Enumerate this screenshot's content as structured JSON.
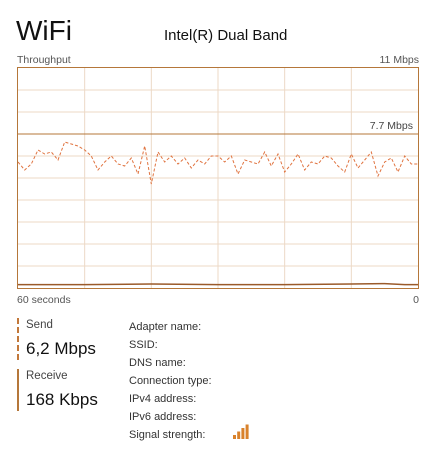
{
  "header": {
    "title": "WiFi",
    "adapter_model": "Intel(R) Dual Band"
  },
  "graph": {
    "throughput_label": "Throughput",
    "max_label": "11 Mbps",
    "scale_label": "7.7 Mbps",
    "time_span_label": "60 seconds",
    "time_end_label": "0"
  },
  "chart_data": {
    "type": "line",
    "x_unit": "seconds ago",
    "xlim": [
      60,
      0
    ],
    "ylim": [
      0,
      11
    ],
    "y_unit": "Mbps",
    "scale_marker": 7.7,
    "grid": true,
    "colors": {
      "border": "#b5773a",
      "grid": "#ecd9c6",
      "send": "#e0733f",
      "receive": "#9a5a2a"
    },
    "series": [
      {
        "name": "Send",
        "style": "dashed",
        "x": [
          60,
          59,
          58,
          57,
          56,
          55,
          54,
          53,
          52,
          51,
          50,
          49,
          48,
          47,
          46,
          45,
          44,
          43,
          42,
          41,
          40,
          39,
          38,
          37,
          36,
          35,
          34,
          33,
          32,
          31,
          30,
          29,
          28,
          27,
          26,
          25,
          24,
          23,
          22,
          21,
          20,
          19,
          18,
          17,
          16,
          15,
          14,
          13,
          12,
          11,
          10,
          9,
          8,
          7,
          6,
          5,
          4,
          3,
          2,
          1,
          0
        ],
        "values": [
          6.3,
          5.9,
          6.2,
          6.9,
          6.7,
          6.8,
          6.4,
          7.3,
          7.2,
          7.1,
          6.9,
          6.6,
          5.9,
          6.3,
          6.6,
          6.2,
          6.1,
          6.5,
          5.7,
          7.1,
          5.2,
          6.8,
          6.3,
          6.6,
          6.2,
          6.5,
          6.0,
          6.4,
          6.2,
          6.6,
          6.6,
          6.3,
          6.6,
          5.7,
          6.4,
          6.3,
          6.2,
          6.8,
          6.1,
          6.7,
          5.8,
          6.2,
          6.7,
          5.9,
          6.3,
          6.2,
          6.6,
          6.5,
          6.1,
          5.8,
          6.7,
          6.0,
          6.4,
          6.8,
          5.6,
          6.3,
          6.5,
          5.8,
          6.6,
          6.2,
          6.2
        ]
      },
      {
        "name": "Receive",
        "style": "solid",
        "x": [
          60,
          50,
          40,
          30,
          20,
          10,
          5,
          2,
          0
        ],
        "values": [
          0.17,
          0.17,
          0.2,
          0.17,
          0.17,
          0.2,
          0.22,
          0.17,
          0.17
        ]
      }
    ]
  },
  "stats": {
    "send": {
      "label": "Send",
      "value": "6,2 Mbps"
    },
    "receive": {
      "label": "Receive",
      "value": "168 Kbps"
    }
  },
  "details": {
    "adapter_name_label": "Adapter name:",
    "ssid_label": "SSID:",
    "dns_name_label": "DNS name:",
    "connection_type_label": "Connection type:",
    "ipv4_label": "IPv4 address:",
    "ipv6_label": "IPv6 address:",
    "signal_strength_label": "Signal strength:",
    "signal_icon": "signal-bars-icon",
    "signal_level_bars": 4,
    "signal_total_bars": 4,
    "signal_color": "#d9822b"
  }
}
